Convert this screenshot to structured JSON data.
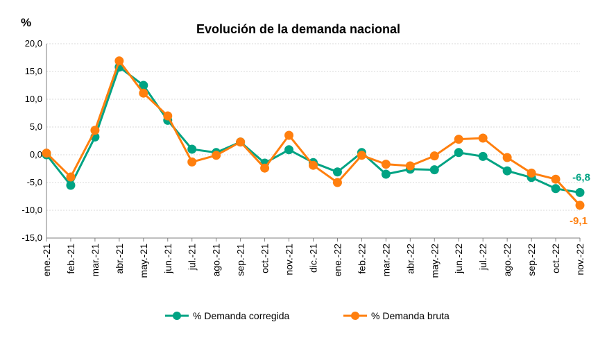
{
  "chart_data": {
    "type": "line",
    "title": "Evolución de la demanda nacional",
    "ylabel": "%",
    "xlabel": "",
    "ylim": [
      -15,
      20
    ],
    "yticks": [
      20,
      15,
      10,
      5,
      0,
      -5,
      -10,
      -15
    ],
    "ytick_labels": [
      "20,0",
      "15,0",
      "10,0",
      "5,0",
      "0,0",
      "-5,0",
      "-10,0",
      "-15,0"
    ],
    "grid": true,
    "legend_position": "bottom",
    "categories": [
      "ene.-21",
      "feb.-21",
      "mar.-21",
      "abr.-21",
      "may.-21",
      "jun.-21",
      "jul.-21",
      "ago.-21",
      "sep.-21",
      "oct.-21",
      "nov.-21",
      "dic.-21",
      "ene.-22",
      "feb.-22",
      "mar.-22",
      "abr.-22",
      "may.-22",
      "jun.-22",
      "jul.-22",
      "ago.-22",
      "sep.-22",
      "oct.-22",
      "nov.-22"
    ],
    "series": [
      {
        "name": "% Demanda corregida",
        "color": "#00a383",
        "values": [
          0.0,
          -5.5,
          3.2,
          15.8,
          12.5,
          6.2,
          1.0,
          0.4,
          2.3,
          -1.5,
          0.9,
          -1.4,
          -3.1,
          0.4,
          -3.5,
          -2.6,
          -2.7,
          0.4,
          -0.3,
          -2.9,
          -4.1,
          -6.1,
          -6.8
        ],
        "end_label": "-6,8"
      },
      {
        "name": "% Demanda bruta",
        "color": "#ff7f0e",
        "values": [
          0.3,
          -4.0,
          4.4,
          16.9,
          11.1,
          7.0,
          -1.3,
          -0.1,
          2.3,
          -2.4,
          3.5,
          -1.9,
          -5.0,
          -0.1,
          -1.7,
          -2.0,
          -0.2,
          2.8,
          3.0,
          -0.5,
          -3.3,
          -4.4,
          -9.1
        ],
        "end_label": "-9,1"
      }
    ]
  }
}
